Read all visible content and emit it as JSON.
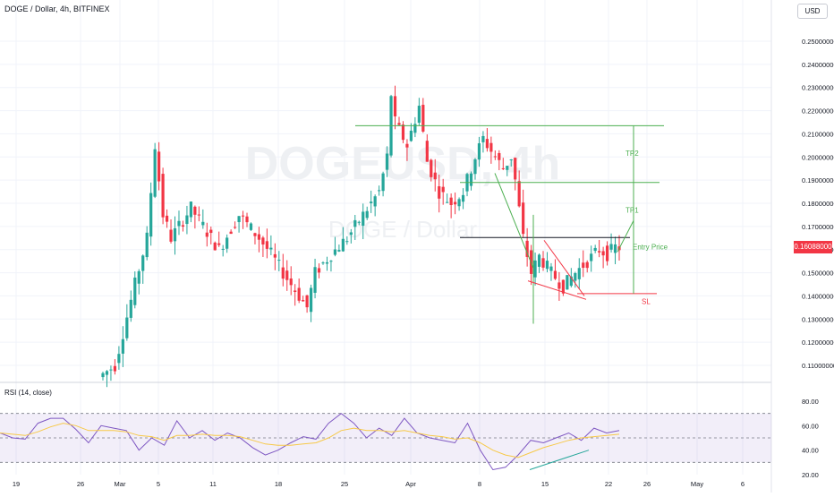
{
  "header": {
    "title": "DOGE / Dollar, 4h, BITFINEX",
    "currency": "USD"
  },
  "watermark": {
    "main": "DOGEUSD, 4h",
    "sub": "DOGE / Dollar"
  },
  "colors": {
    "up": "#26a69a",
    "down": "#f23645",
    "rsi_line": "#7e57c2",
    "rsi_ma": "#f7c948",
    "tp_line": "#4caf50",
    "sl_line": "#f23645",
    "entry_line": "#131722"
  },
  "chart_data": [
    {
      "type": "candlestick",
      "title": "DOGE / Dollar, 4h, BITFINEX",
      "ylim": [
        0.105,
        0.257
      ],
      "y_ticks": [
        "0.25000000",
        "0.24000000",
        "0.23000000",
        "0.22000000",
        "0.21000000",
        "0.20000000",
        "0.19000000",
        "0.18000000",
        "0.17000000",
        "0.16000000",
        "0.15000000",
        "0.14000000",
        "0.13000000",
        "0.12000000",
        "0.11000000"
      ],
      "x_ticks": [
        "19",
        "26",
        "Mar",
        "5",
        "11",
        "18",
        "25",
        "Apr",
        "8",
        "15",
        "22",
        "26",
        "May",
        "6"
      ],
      "last_price": "0.16088000",
      "price_path": [
        [
          0,
          0.105
        ],
        [
          4,
          0.11
        ],
        [
          9,
          0.145
        ],
        [
          12,
          0.165
        ],
        [
          14,
          0.205
        ],
        [
          16,
          0.175
        ],
        [
          18,
          0.165
        ],
        [
          23,
          0.178
        ],
        [
          28,
          0.165
        ],
        [
          30,
          0.16
        ],
        [
          35,
          0.175
        ],
        [
          40,
          0.165
        ],
        [
          43,
          0.158
        ],
        [
          46,
          0.15
        ],
        [
          50,
          0.14
        ],
        [
          52,
          0.135
        ],
        [
          54,
          0.15
        ],
        [
          58,
          0.158
        ],
        [
          62,
          0.165
        ],
        [
          66,
          0.175
        ],
        [
          70,
          0.185
        ],
        [
          72,
          0.2
        ],
        [
          73,
          0.227
        ],
        [
          74,
          0.215
        ],
        [
          77,
          0.205
        ],
        [
          80,
          0.222
        ],
        [
          82,
          0.198
        ],
        [
          85,
          0.185
        ],
        [
          88,
          0.18
        ],
        [
          91,
          0.185
        ],
        [
          94,
          0.2
        ],
        [
          96,
          0.208
        ],
        [
          99,
          0.2
        ],
        [
          101,
          0.195
        ],
        [
          103,
          0.2
        ],
        [
          104,
          0.19
        ],
        [
          106,
          0.165
        ],
        [
          108,
          0.15
        ],
        [
          110,
          0.157
        ],
        [
          113,
          0.15
        ],
        [
          116,
          0.144
        ],
        [
          119,
          0.15
        ],
        [
          122,
          0.155
        ],
        [
          125,
          0.16
        ],
        [
          127,
          0.158
        ],
        [
          129,
          0.161
        ]
      ],
      "levels": [
        {
          "name": "TP2",
          "price": 0.2135
        },
        {
          "name": "TP1",
          "price": 0.189
        },
        {
          "name": "Entry Price",
          "price": 0.1652
        },
        {
          "name": "SL",
          "price": 0.141
        }
      ],
      "level_labels": {
        "tp2": "TP2",
        "tp1": "TP1",
        "entry": "Entry Price",
        "sl": "SL"
      }
    },
    {
      "type": "line",
      "title": "RSI (14, close)",
      "ylim": [
        20,
        80
      ],
      "y_ticks": [
        "80.00",
        "60.00",
        "40.00",
        "20.00"
      ],
      "band": [
        30,
        70
      ],
      "series": [
        {
          "name": "RSI",
          "values": [
            54,
            50,
            49,
            62,
            66,
            66,
            57,
            46,
            60,
            58,
            56,
            40,
            50,
            44,
            64,
            50,
            56,
            48,
            54,
            50,
            42,
            36,
            40,
            46,
            51,
            49,
            62,
            70,
            62,
            50,
            58,
            52,
            66,
            54,
            50,
            48,
            46,
            62,
            40,
            24,
            26,
            36,
            48,
            46,
            50,
            54,
            48,
            58,
            54,
            56
          ]
        },
        {
          "name": "MA",
          "values": [
            54,
            53,
            52,
            55,
            59,
            62,
            60,
            56,
            56,
            56,
            55,
            52,
            51,
            48,
            52,
            52,
            53,
            52,
            52,
            51,
            48,
            45,
            44,
            44,
            45,
            46,
            50,
            56,
            58,
            56,
            56,
            55,
            56,
            54,
            52,
            51,
            49,
            50,
            46,
            40,
            36,
            34,
            38,
            42,
            45,
            48,
            50,
            51,
            52,
            53
          ]
        }
      ]
    }
  ]
}
